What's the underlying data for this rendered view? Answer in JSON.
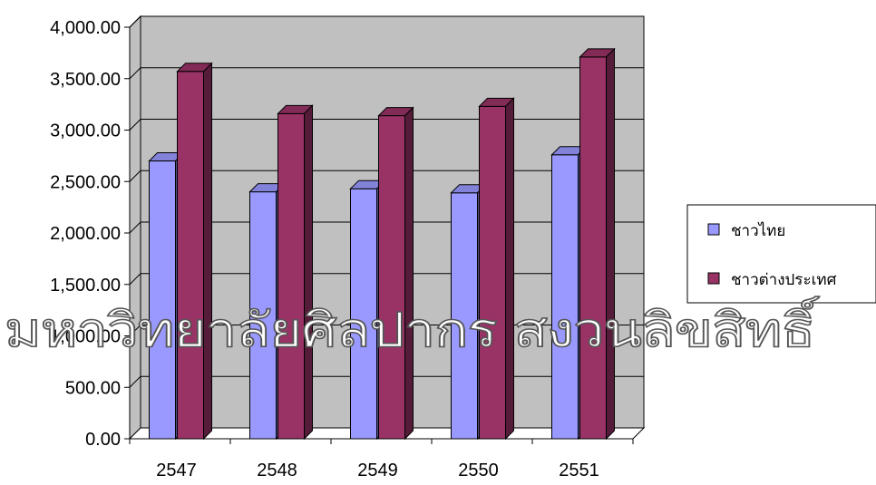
{
  "chart_data": {
    "type": "bar",
    "categories": [
      "2547",
      "2548",
      "2549",
      "2550",
      "2551"
    ],
    "series": [
      {
        "name": "ชาวไทย",
        "color": "#9999ff",
        "values": [
          2700,
          2400,
          2430,
          2390,
          2760
        ]
      },
      {
        "name": "ชาวต่างประเทศ",
        "color": "#993366",
        "values": [
          3570,
          3160,
          3140,
          3230,
          3710
        ]
      }
    ],
    "ylim": [
      0,
      4000
    ],
    "yticks": [
      "0.00",
      "500.00",
      "1,000.00",
      "1,500.00",
      "2,000.00",
      "2,500.00",
      "3,000.00",
      "3,500.00",
      "4,000.00"
    ],
    "grid": true,
    "legend_position": "right",
    "plot_background": "#c0c0c0",
    "style": "3d-clustered-column"
  },
  "watermark": {
    "text": "มหาวิทยาลัยศิลปากร สงวนลิขสิทธิ์"
  }
}
